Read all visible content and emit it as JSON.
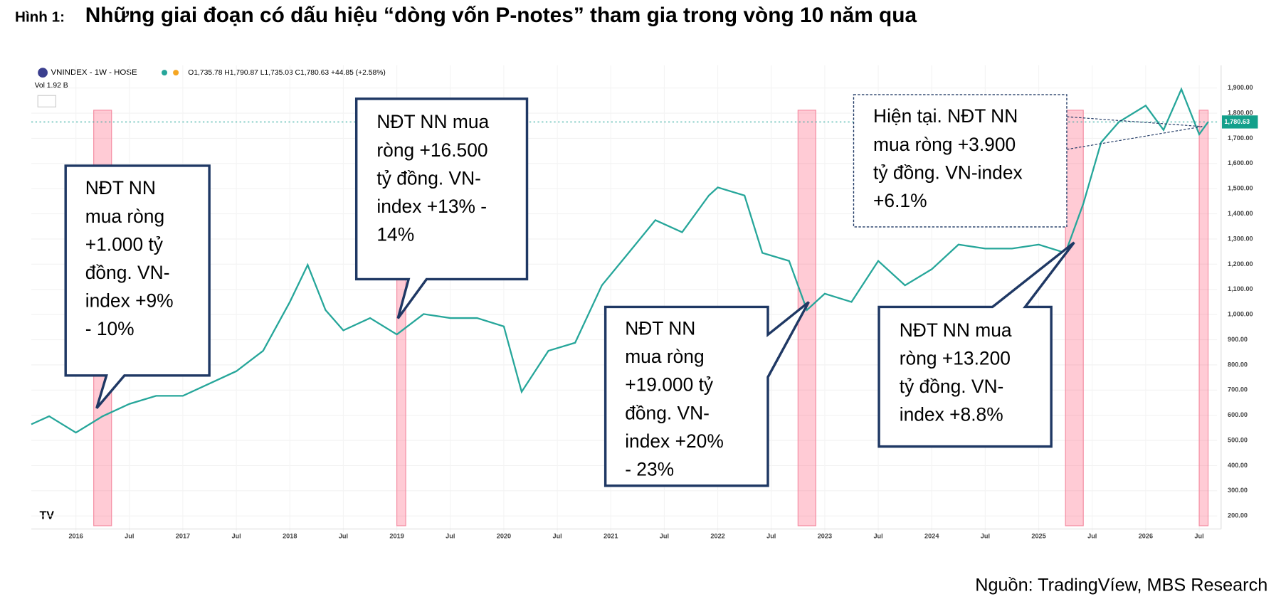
{
  "header": {
    "label": "Hình 1:",
    "title": "Những giai đoạn có dấu hiệu “dòng vốn P-notes” tham gia trong vòng 10 năm qua"
  },
  "chart_data": {
    "type": "line",
    "symbol": "VNINDEX - 1W - HOSE",
    "ohlc": "O1,735.78 H1,790.87 L1,735.03 C1,780.63 +44.85 (+2.58%)",
    "volume_label": "Vol 1.92 B",
    "last_price_label": "1,780.63",
    "x": [
      "2015-08",
      "2015-10",
      "2016-01",
      "2016-04",
      "2016-07",
      "2016-10",
      "2017-01",
      "2017-04",
      "2017-07",
      "2017-10",
      "2018-01",
      "2018-03",
      "2018-05",
      "2018-07",
      "2018-10",
      "2019-01",
      "2019-04",
      "2019-07",
      "2019-10",
      "2020-01",
      "2020-03",
      "2020-06",
      "2020-09",
      "2020-12",
      "2021-03",
      "2021-06",
      "2021-09",
      "2021-12",
      "2022-01",
      "2022-04",
      "2022-06",
      "2022-09",
      "2022-11",
      "2023-01",
      "2023-04",
      "2023-07",
      "2023-10",
      "2024-01",
      "2024-04",
      "2024-07",
      "2024-10",
      "2025-01",
      "2025-04",
      "2025-06",
      "2025-08",
      "2025-10",
      "2026-01",
      "2026-03",
      "2026-05",
      "2026-07",
      "2026-08"
    ],
    "series": [
      {
        "name": "VNINDEX",
        "color": "#26a69a",
        "values": [
          564,
          596,
          531,
          596,
          645,
          677,
          677,
          726,
          775,
          856,
          1050,
          1197,
          1018,
          937,
          986,
          921,
          1002,
          986,
          986,
          953,
          693,
          856,
          888,
          1116,
          1245,
          1375,
          1327,
          1473,
          1505,
          1473,
          1245,
          1213,
          1018,
          1083,
          1050,
          1213,
          1116,
          1180,
          1278,
          1262,
          1262,
          1278,
          1245,
          1440,
          1684,
          1765,
          1830,
          1733,
          1895,
          1716,
          1765
        ]
      }
    ],
    "highlights": [
      [
        "2016-03",
        "2016-05"
      ],
      [
        "2019-01",
        "2019-02"
      ],
      [
        "2022-10",
        "2022-12"
      ],
      [
        "2025-04",
        "2025-06"
      ],
      [
        "2026-07",
        "2026-08"
      ]
    ],
    "xlim": [
      "2015-08",
      "2026-09"
    ],
    "xticks": [
      {
        "value": "2016-01",
        "label": "2016"
      },
      {
        "value": "2016-07",
        "label": "Jul"
      },
      {
        "value": "2017-01",
        "label": "2017"
      },
      {
        "value": "2017-07",
        "label": "Jul"
      },
      {
        "value": "2018-01",
        "label": "2018"
      },
      {
        "value": "2018-07",
        "label": "Jul"
      },
      {
        "value": "2019-01",
        "label": "2019"
      },
      {
        "value": "2019-07",
        "label": "Jul"
      },
      {
        "value": "2020-01",
        "label": "2020"
      },
      {
        "value": "2020-07",
        "label": "Jul"
      },
      {
        "value": "2021-01",
        "label": "2021"
      },
      {
        "value": "2021-07",
        "label": "Jul"
      },
      {
        "value": "2022-01",
        "label": "2022"
      },
      {
        "value": "2022-07",
        "label": "Jul"
      },
      {
        "value": "2023-01",
        "label": "2023"
      },
      {
        "value": "2023-07",
        "label": "Jul"
      },
      {
        "value": "2024-01",
        "label": "2024"
      },
      {
        "value": "2024-07",
        "label": "Jul"
      },
      {
        "value": "2025-01",
        "label": "2025"
      },
      {
        "value": "2025-07",
        "label": "Jul"
      },
      {
        "value": "2026-01",
        "label": "2026"
      },
      {
        "value": "2026-07",
        "label": "Jul"
      }
    ],
    "ylim": [
      200,
      1990
    ],
    "yticks": [
      {
        "value": 200,
        "label": "200.00"
      },
      {
        "value": 300,
        "label": "300.00"
      },
      {
        "value": 400,
        "label": "400.00"
      },
      {
        "value": 500,
        "label": "500.00"
      },
      {
        "value": 600,
        "label": "600.00"
      },
      {
        "value": 700,
        "label": "700.00"
      },
      {
        "value": 800,
        "label": "800.00"
      },
      {
        "value": 900,
        "label": "900.00"
      },
      {
        "value": 1000,
        "label": "1,000.00"
      },
      {
        "value": 1100,
        "label": "1,100.00"
      },
      {
        "value": 1200,
        "label": "1,200.00"
      },
      {
        "value": 1300,
        "label": "1,300.00"
      },
      {
        "value": 1400,
        "label": "1,400.00"
      },
      {
        "value": 1500,
        "label": "1,500.00"
      },
      {
        "value": 1600,
        "label": "1,600.00"
      },
      {
        "value": 1700,
        "label": "1,700.00"
      },
      {
        "value": 1800,
        "label": "1,800.00"
      },
      {
        "value": 1900,
        "label": "1,900.00"
      }
    ],
    "annotations": [
      {
        "lines": [
          "NĐT NN",
          "mua ròng",
          "+1.000 tỷ",
          "đồng. VN-",
          "index +9%",
          "- 10%"
        ]
      },
      {
        "lines": [
          "NĐT NN mua",
          "ròng +16.500",
          "tỷ đồng. VN-",
          "index +13% -",
          "14%"
        ]
      },
      {
        "lines": [
          "NĐT NN",
          "mua ròng",
          "+19.000 tỷ",
          "đồng. VN-",
          "index +20%",
          "- 23%"
        ]
      },
      {
        "lines": [
          "Hiện tại. NĐT NN",
          "mua ròng +3.900",
          "tỷ đồng. VN-index",
          "+6.1%"
        ]
      },
      {
        "lines": [
          "NĐT NN mua",
          "ròng +13.200",
          "tỷ đồng. VN-",
          "index +8.8%"
        ]
      }
    ]
  },
  "source": "Nguồn: TradingVíew, MBS Research"
}
